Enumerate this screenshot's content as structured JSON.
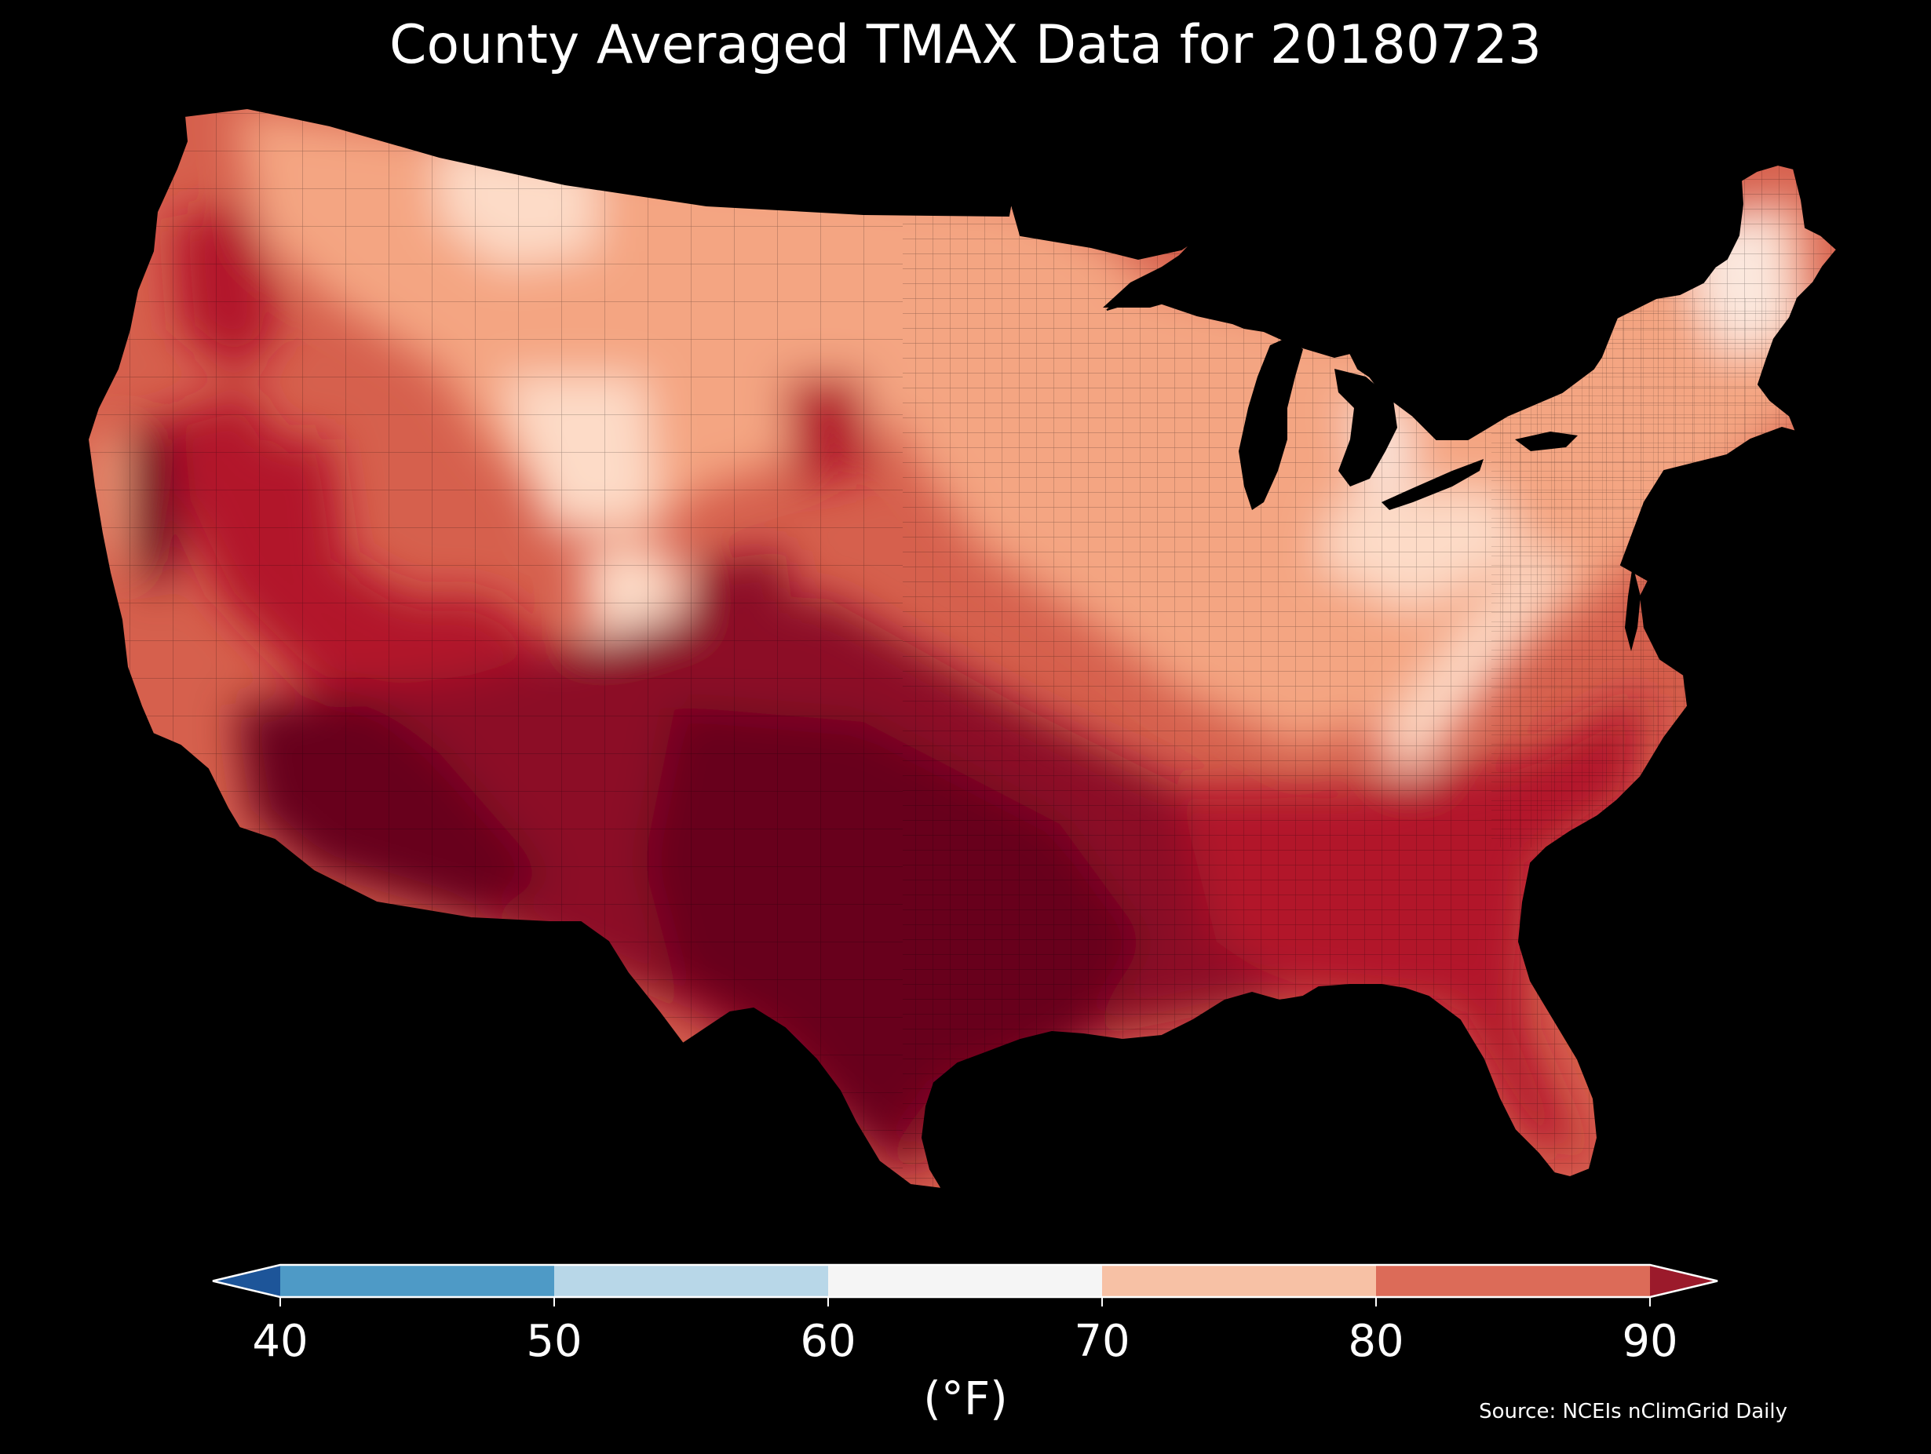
{
  "map": {
    "title": "County Averaged TMAX Data for 20180723",
    "source": "Source: NCEIs nClimGrid Daily",
    "units": "(°F)",
    "background_color": "#000000",
    "colorbar": {
      "extend": "both",
      "ticks": [
        "40",
        "50",
        "60",
        "70",
        "80",
        "90"
      ],
      "under_color": "#1d5599",
      "over_color": "#9b1a2b",
      "bins": [
        {
          "from": 40,
          "to": 50,
          "color": "#4e9ac6"
        },
        {
          "from": 50,
          "to": 60,
          "color": "#b8d7e8"
        },
        {
          "from": 60,
          "to": 70,
          "color": "#f5f5f5"
        },
        {
          "from": 70,
          "to": 80,
          "color": "#f7c1a5"
        },
        {
          "from": 80,
          "to": 90,
          "color": "#dc6b58"
        }
      ]
    },
    "map_colors": {
      "hottest": "#67001f",
      "very_hot": "#8c1028",
      "hot": "#b2182b",
      "warm": "#d6604d",
      "mild": "#f4a582",
      "cool": "#fddbc7",
      "coolest": "#fbe8de"
    }
  }
}
